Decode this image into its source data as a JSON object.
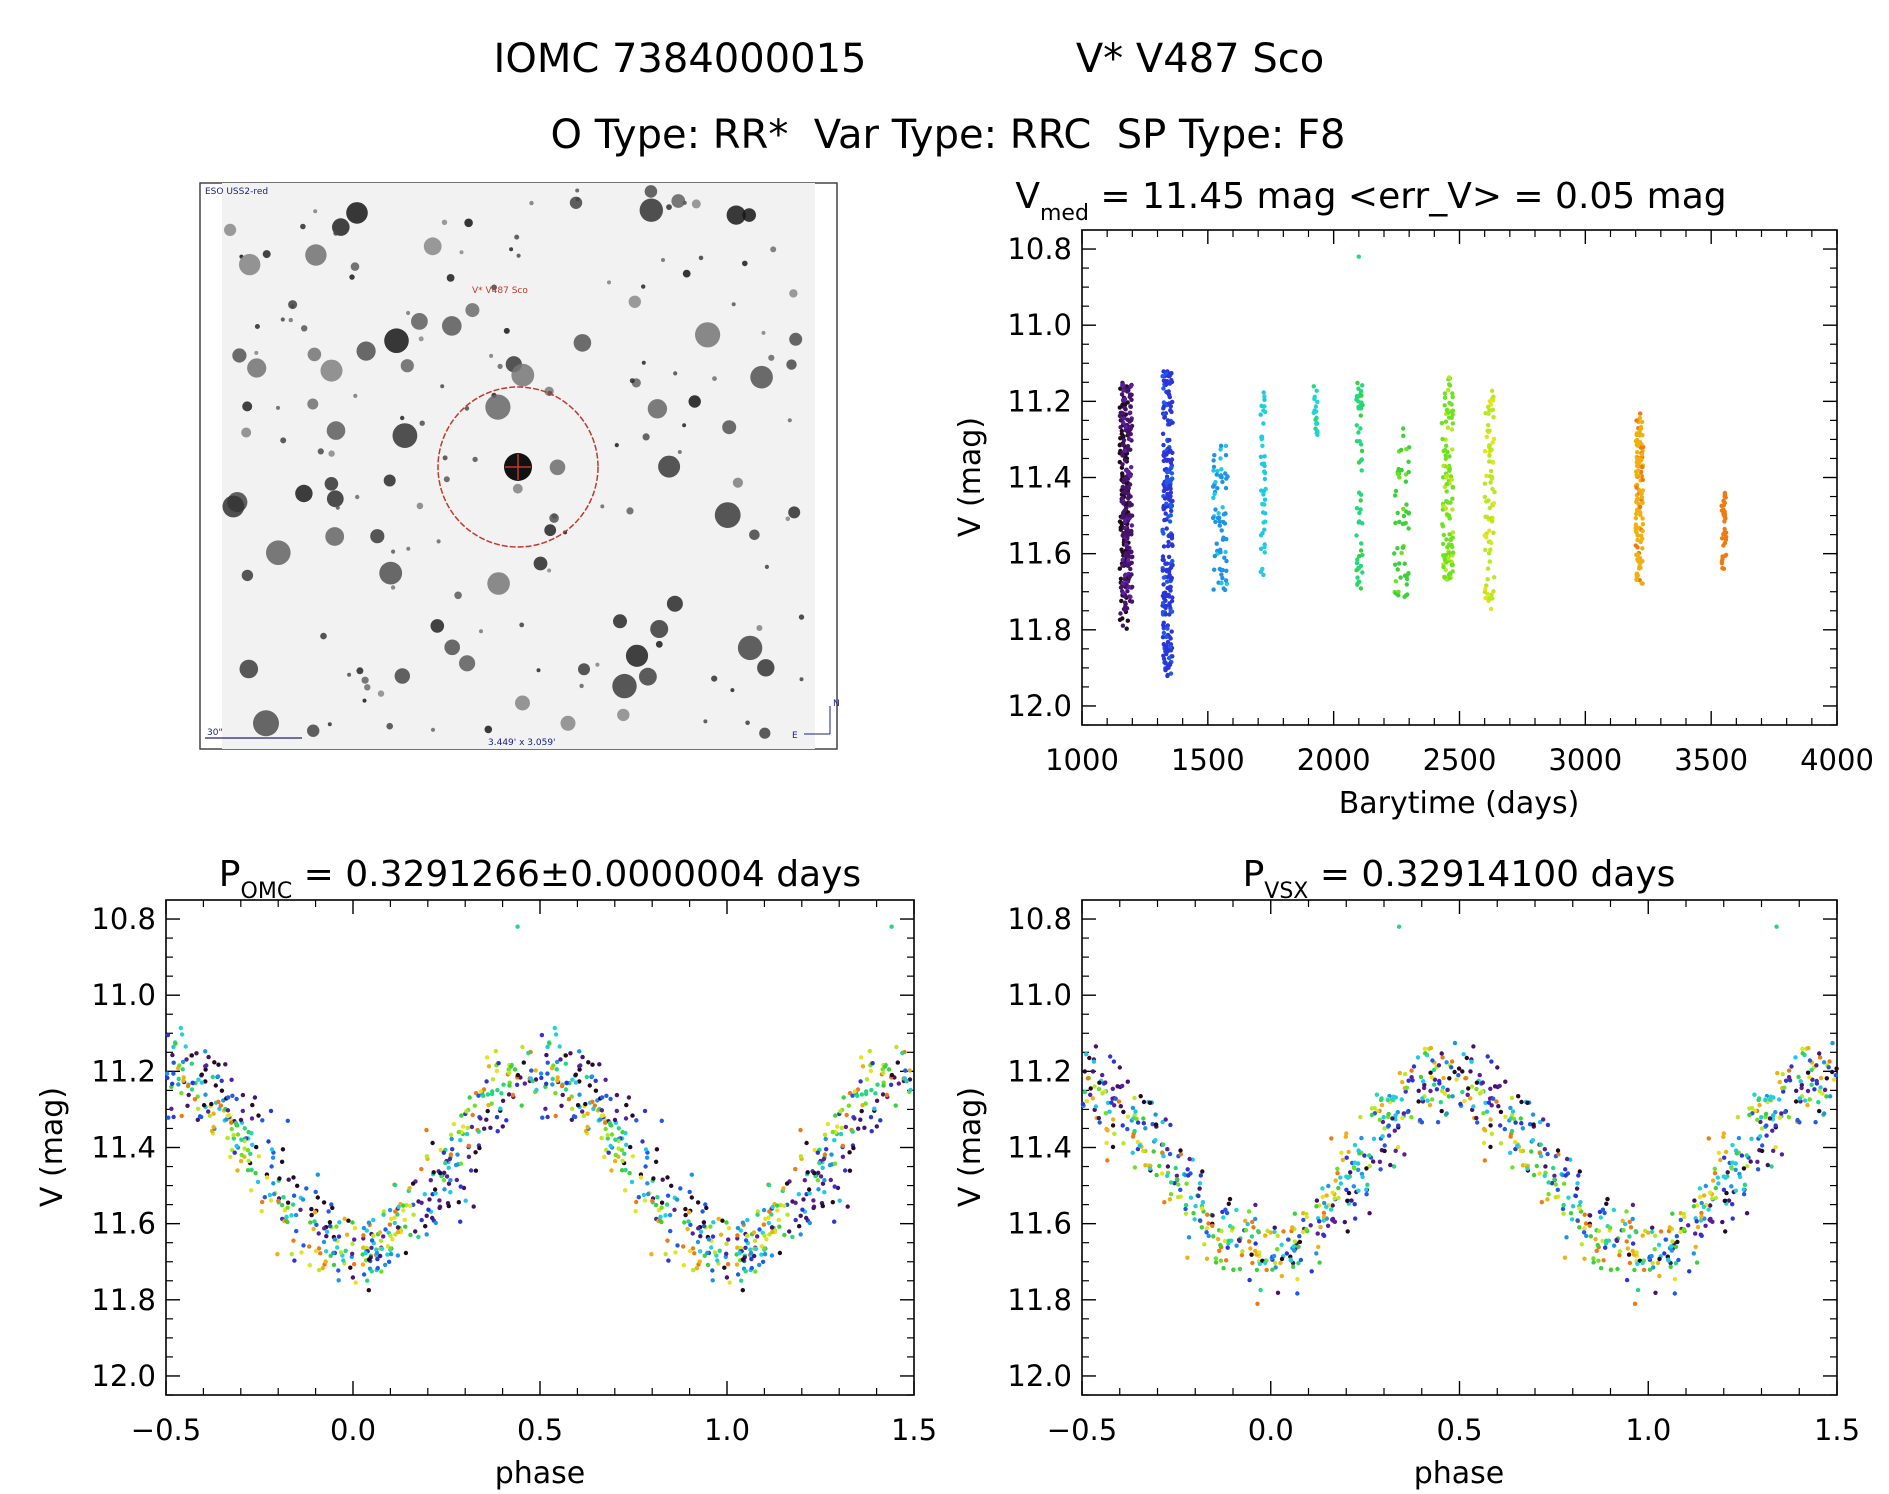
{
  "header": {
    "object_id": "IOMC 7384000015",
    "star_name": "V* V487 Sco",
    "types_line": "O Type: RR*  Var Type: RRC  SP Type: F8"
  },
  "finder": {
    "survey_label": "ESO USS2-red",
    "target_label": "V* V487 Sco",
    "scale_label": "30\"",
    "fov_label": "3.449' x 3.059'",
    "north_label": "N",
    "east_label": "E"
  },
  "palette": [
    "#220a20",
    "#45136a",
    "#5a1e9c",
    "#2b35d8",
    "#1f5ae8",
    "#1d94e8",
    "#1fc7e8",
    "#1ed4d4",
    "#22d880",
    "#3ad13a",
    "#6ee21f",
    "#b8e81f",
    "#e8e11f",
    "#f0b012",
    "#f07a12"
  ],
  "chart_data": [
    {
      "id": "lightcurve",
      "type": "scatter",
      "title_main": "V",
      "title_sub": "med",
      "title_rest": " = 11.45 mag <err_V> = 0.05 mag",
      "xlabel": "Barytime (days)",
      "ylabel": "V (mag)",
      "xlim": [
        1000,
        4000
      ],
      "ylim": [
        12.05,
        10.75
      ],
      "xticks": [
        1000,
        1500,
        2000,
        2500,
        3000,
        3500,
        4000
      ],
      "xtick_labels": [
        "1000",
        "1500",
        "2000",
        "2500",
        "3000",
        "3500",
        "4000"
      ],
      "yticks": [
        10.8,
        11.0,
        11.2,
        11.4,
        11.6,
        11.8,
        12.0
      ],
      "ytick_labels": [
        "10.8",
        "11.0",
        "11.2",
        "11.4",
        "11.6",
        "11.8",
        "12.0"
      ],
      "outlier": {
        "x": 2100,
        "y": 10.82,
        "color_index": 8
      },
      "series": [
        {
          "name": "block-1",
          "x": [
            1150,
            1185
          ],
          "y_range": [
            11.15,
            11.8
          ],
          "count": 160,
          "color_index": 0
        },
        {
          "name": "block-1b",
          "x": [
            1160,
            1200
          ],
          "y_range": [
            11.15,
            11.75
          ],
          "count": 160,
          "color_index": 1
        },
        {
          "name": "block-2",
          "x": [
            1320,
            1360
          ],
          "y_range": [
            11.12,
            11.93
          ],
          "count": 260,
          "color_index": 3
        },
        {
          "name": "block-3",
          "x": [
            1520,
            1580
          ],
          "y_range": [
            11.31,
            11.7
          ],
          "count": 70,
          "color_index": 5
        },
        {
          "name": "block-4",
          "x": [
            1710,
            1730
          ],
          "y_range": [
            11.17,
            11.66
          ],
          "count": 45,
          "color_index": 6
        },
        {
          "name": "block-5",
          "x": [
            1920,
            1940
          ],
          "y_range": [
            11.16,
            11.29
          ],
          "count": 18,
          "color_index": 7
        },
        {
          "name": "block-6",
          "x": [
            2090,
            2115
          ],
          "y_range": [
            11.15,
            11.7
          ],
          "count": 55,
          "color_index": 8
        },
        {
          "name": "block-7",
          "x": [
            2240,
            2300
          ],
          "y_range": [
            11.27,
            11.72
          ],
          "count": 55,
          "color_index": 9
        },
        {
          "name": "block-8",
          "x": [
            2430,
            2475
          ],
          "y_range": [
            11.13,
            11.68
          ],
          "count": 120,
          "color_index": 10
        },
        {
          "name": "block-9",
          "x": [
            2600,
            2640
          ],
          "y_range": [
            11.17,
            11.75
          ],
          "count": 80,
          "color_index": 11
        },
        {
          "name": "block-10",
          "x": [
            3200,
            3230
          ],
          "y_range": [
            11.23,
            11.68
          ],
          "count": 120,
          "color_index": 13
        },
        {
          "name": "block-11",
          "x": [
            3540,
            3560
          ],
          "y_range": [
            11.44,
            11.64
          ],
          "count": 40,
          "color_index": 14
        }
      ]
    },
    {
      "id": "phase_omc",
      "type": "scatter",
      "title_main": "P",
      "title_sub": "OMC",
      "title_rest": " = 0.3291266±0.0000004 days",
      "xlabel": "phase",
      "ylabel": "V (mag)",
      "xlim": [
        -0.5,
        1.5
      ],
      "ylim": [
        12.05,
        10.75
      ],
      "xticks": [
        -0.5,
        0.0,
        0.5,
        1.0,
        1.5
      ],
      "xtick_labels": [
        "−0.5",
        "0.0",
        "0.5",
        "1.0",
        "1.5"
      ],
      "yticks": [
        10.8,
        11.0,
        11.2,
        11.4,
        11.6,
        11.8,
        12.0
      ],
      "ytick_labels": [
        "10.8",
        "11.0",
        "11.2",
        "11.4",
        "11.6",
        "11.8",
        "12.0"
      ],
      "curve": {
        "max_mag": 11.2,
        "min_mag": 11.68,
        "max_phase": 0.5,
        "min_phase": 0.0,
        "scatter": 0.05
      },
      "outliers": [
        {
          "x": 0.44,
          "y": 10.82
        },
        {
          "x": 1.44,
          "y": 10.82
        }
      ],
      "points_per_cycle": 520
    },
    {
      "id": "phase_vsx",
      "type": "scatter",
      "title_main": "P",
      "title_sub": "VSX",
      "title_rest": " = 0.32914100 days",
      "xlabel": "phase",
      "ylabel": "V (mag)",
      "xlim": [
        -0.5,
        1.5
      ],
      "ylim": [
        12.05,
        10.75
      ],
      "xticks": [
        -0.5,
        0.0,
        0.5,
        1.0,
        1.5
      ],
      "xtick_labels": [
        "−0.5",
        "0.0",
        "0.5",
        "1.0",
        "1.5"
      ],
      "yticks": [
        10.8,
        11.0,
        11.2,
        11.4,
        11.6,
        11.8,
        12.0
      ],
      "ytick_labels": [
        "10.8",
        "11.0",
        "11.2",
        "11.4",
        "11.6",
        "11.8",
        "12.0"
      ],
      "curve": {
        "max_mag": 11.22,
        "min_mag": 11.68,
        "max_phase": 0.45,
        "min_phase": 0.0,
        "scatter": 0.05
      },
      "outliers": [
        {
          "x": 0.34,
          "y": 10.82
        },
        {
          "x": 1.34,
          "y": 10.82
        }
      ],
      "points_per_cycle": 520
    }
  ]
}
